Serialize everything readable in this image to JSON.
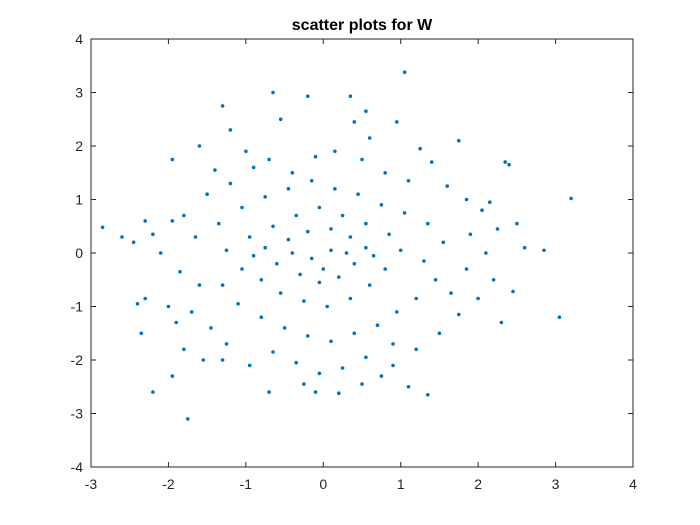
{
  "chart_data": {
    "type": "scatter",
    "title": "scatter plots for W",
    "xlabel": "",
    "ylabel": "",
    "xlim": [
      -3,
      4
    ],
    "ylim": [
      -4,
      4
    ],
    "xticks": [
      -3,
      -2,
      -1,
      0,
      1,
      2,
      3,
      4
    ],
    "yticks": [
      -4,
      -3,
      -2,
      -1,
      0,
      1,
      2,
      3,
      4
    ],
    "xtick_labels": [
      "-3",
      "-2",
      "-1",
      "0",
      "1",
      "2",
      "3",
      "4"
    ],
    "ytick_labels": [
      "-4",
      "-3",
      "-2",
      "-1",
      "0",
      "1",
      "2",
      "3",
      "4"
    ],
    "grid": false,
    "marker_color": "#0072BD",
    "series": [
      {
        "points": [
          [
            -2.85,
            0.48
          ],
          [
            -2.6,
            0.3
          ],
          [
            -2.4,
            -0.95
          ],
          [
            -2.35,
            -1.5
          ],
          [
            -2.2,
            -2.6
          ],
          [
            -2.0,
            -1.0
          ],
          [
            -1.95,
            -2.3
          ],
          [
            -1.9,
            -1.3
          ],
          [
            -1.8,
            -1.8
          ],
          [
            -1.75,
            -3.1
          ],
          [
            -1.3,
            2.75
          ],
          [
            -1.2,
            2.3
          ],
          [
            -0.65,
            3.0
          ],
          [
            -0.2,
            2.93
          ],
          [
            0.35,
            2.93
          ],
          [
            0.55,
            2.65
          ],
          [
            0.4,
            2.45
          ],
          [
            1.05,
            3.38
          ],
          [
            0.95,
            2.45
          ],
          [
            1.75,
            2.1
          ],
          [
            2.35,
            1.7
          ],
          [
            2.4,
            1.65
          ],
          [
            3.2,
            1.02
          ],
          [
            2.85,
            0.05
          ],
          [
            3.05,
            -1.2
          ],
          [
            2.45,
            -0.72
          ],
          [
            2.3,
            -1.3
          ],
          [
            1.35,
            -2.65
          ],
          [
            1.1,
            -2.5
          ],
          [
            0.5,
            -2.45
          ],
          [
            0.2,
            -2.62
          ],
          [
            -0.25,
            -2.45
          ],
          [
            -0.7,
            -2.6
          ],
          [
            -1.3,
            -2.0
          ],
          [
            -2.3,
            -0.85
          ],
          [
            -1.95,
            1.75
          ],
          [
            -1.6,
            2.0
          ],
          [
            -1.4,
            1.55
          ],
          [
            -1.8,
            0.7
          ],
          [
            -1.5,
            1.1
          ],
          [
            -1.2,
            1.3
          ],
          [
            -0.9,
            1.6
          ],
          [
            -0.7,
            1.75
          ],
          [
            -0.4,
            1.5
          ],
          [
            -0.1,
            1.8
          ],
          [
            0.15,
            1.9
          ],
          [
            0.5,
            1.75
          ],
          [
            0.8,
            1.5
          ],
          [
            1.1,
            1.35
          ],
          [
            1.4,
            1.7
          ],
          [
            1.6,
            1.25
          ],
          [
            1.85,
            1.0
          ],
          [
            2.05,
            0.8
          ],
          [
            2.25,
            0.45
          ],
          [
            2.6,
            0.1
          ],
          [
            2.1,
            0.0
          ],
          [
            1.85,
            -0.3
          ],
          [
            2.0,
            -0.85
          ],
          [
            1.75,
            -1.15
          ],
          [
            1.5,
            -1.5
          ],
          [
            1.2,
            -1.8
          ],
          [
            0.9,
            -2.1
          ],
          [
            0.55,
            -1.95
          ],
          [
            0.25,
            -2.15
          ],
          [
            -0.05,
            -2.25
          ],
          [
            -0.35,
            -2.05
          ],
          [
            -0.65,
            -1.85
          ],
          [
            -0.95,
            -2.1
          ],
          [
            -1.25,
            -1.7
          ],
          [
            -1.45,
            -1.4
          ],
          [
            -1.7,
            -1.1
          ],
          [
            -1.6,
            -0.6
          ],
          [
            -1.85,
            -0.35
          ],
          [
            -2.1,
            0.0
          ],
          [
            -2.2,
            0.35
          ],
          [
            -1.95,
            0.6
          ],
          [
            -1.65,
            0.3
          ],
          [
            -1.35,
            0.55
          ],
          [
            -1.05,
            0.85
          ],
          [
            -0.75,
            1.05
          ],
          [
            -0.45,
            1.2
          ],
          [
            -0.15,
            1.35
          ],
          [
            0.15,
            1.2
          ],
          [
            0.45,
            1.1
          ],
          [
            0.75,
            0.9
          ],
          [
            1.05,
            0.75
          ],
          [
            1.35,
            0.55
          ],
          [
            1.55,
            0.2
          ],
          [
            1.3,
            -0.15
          ],
          [
            1.45,
            -0.5
          ],
          [
            1.2,
            -0.85
          ],
          [
            0.95,
            -1.1
          ],
          [
            0.7,
            -1.35
          ],
          [
            0.4,
            -1.5
          ],
          [
            0.1,
            -1.65
          ],
          [
            -0.2,
            -1.55
          ],
          [
            -0.5,
            -1.4
          ],
          [
            -0.8,
            -1.2
          ],
          [
            -1.1,
            -0.95
          ],
          [
            -1.3,
            -0.6
          ],
          [
            -1.05,
            -0.3
          ],
          [
            -1.25,
            0.05
          ],
          [
            -0.95,
            0.3
          ],
          [
            -0.65,
            0.5
          ],
          [
            -0.35,
            0.7
          ],
          [
            -0.05,
            0.85
          ],
          [
            0.25,
            0.7
          ],
          [
            0.55,
            0.55
          ],
          [
            0.85,
            0.35
          ],
          [
            1.0,
            0.05
          ],
          [
            0.8,
            -0.3
          ],
          [
            0.6,
            -0.6
          ],
          [
            0.35,
            -0.85
          ],
          [
            0.05,
            -1.0
          ],
          [
            -0.25,
            -0.9
          ],
          [
            -0.55,
            -0.75
          ],
          [
            -0.8,
            -0.5
          ],
          [
            -0.6,
            -0.2
          ],
          [
            -0.75,
            0.1
          ],
          [
            -0.45,
            0.25
          ],
          [
            -0.2,
            0.4
          ],
          [
            0.1,
            0.45
          ],
          [
            0.35,
            0.3
          ],
          [
            0.55,
            0.1
          ],
          [
            0.4,
            -0.2
          ],
          [
            0.2,
            -0.45
          ],
          [
            -0.05,
            -0.55
          ],
          [
            -0.3,
            -0.4
          ],
          [
            -0.15,
            -0.1
          ],
          [
            0.1,
            0.05
          ],
          [
            0.3,
            0.0
          ],
          [
            -0.4,
            0.0
          ],
          [
            0.0,
            -0.3
          ],
          [
            0.65,
            -0.05
          ],
          [
            -0.9,
            -0.05
          ],
          [
            1.65,
            -0.75
          ],
          [
            1.9,
            0.35
          ],
          [
            2.2,
            -0.5
          ],
          [
            2.5,
            0.55
          ],
          [
            -2.45,
            0.2
          ],
          [
            -2.3,
            0.6
          ],
          [
            -1.55,
            -2.0
          ],
          [
            -1.0,
            1.9
          ],
          [
            0.6,
            2.15
          ],
          [
            1.25,
            1.95
          ],
          [
            2.15,
            0.95
          ],
          [
            -0.1,
            -2.6
          ],
          [
            0.75,
            -2.3
          ],
          [
            -0.55,
            2.5
          ],
          [
            0.9,
            -1.7
          ]
        ]
      }
    ]
  }
}
